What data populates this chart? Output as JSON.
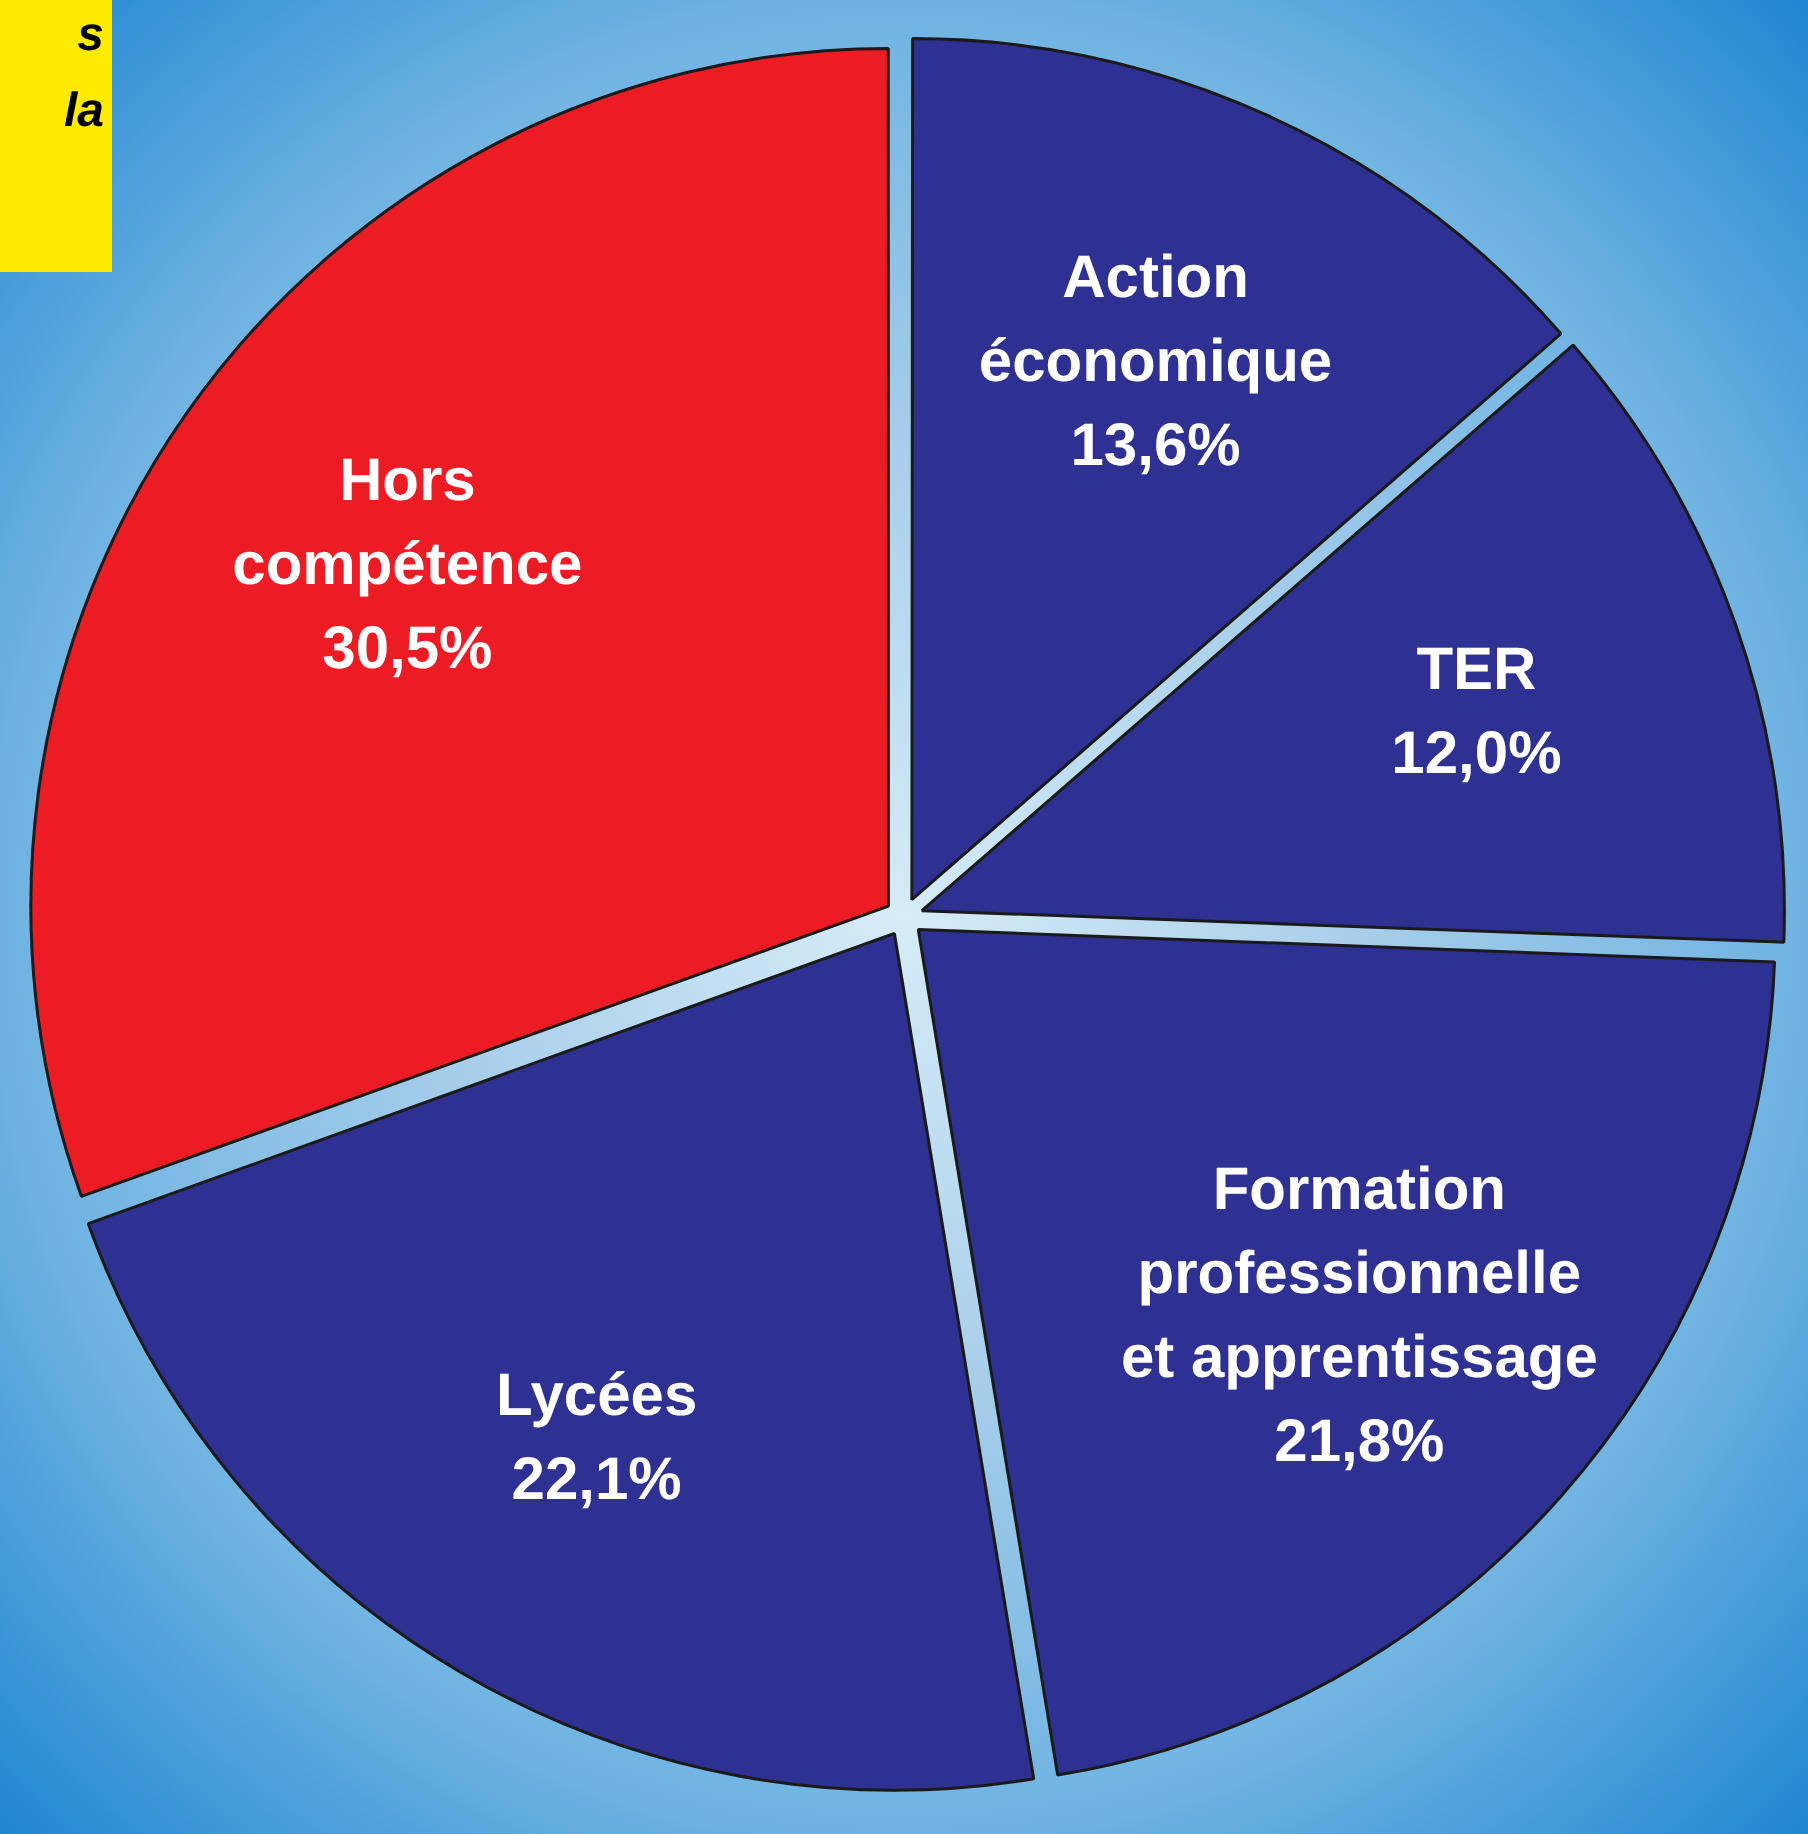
{
  "chart_data": {
    "type": "pie",
    "categories": [
      "Action économique",
      "TER",
      "Formation professionnelle et apprentissage",
      "Lycées",
      "Hors compétence"
    ],
    "values": [
      13.6,
      12.0,
      21.8,
      22.1,
      30.5
    ],
    "value_labels": [
      "13,6%",
      "12,0%",
      "21,8%",
      "22,1%",
      "30,5%"
    ],
    "colors": [
      "#2e3192",
      "#2e3192",
      "#2e3192",
      "#2e3192",
      "#ed1c24"
    ],
    "legend": false,
    "annotations": [
      "s",
      "la"
    ]
  }
}
